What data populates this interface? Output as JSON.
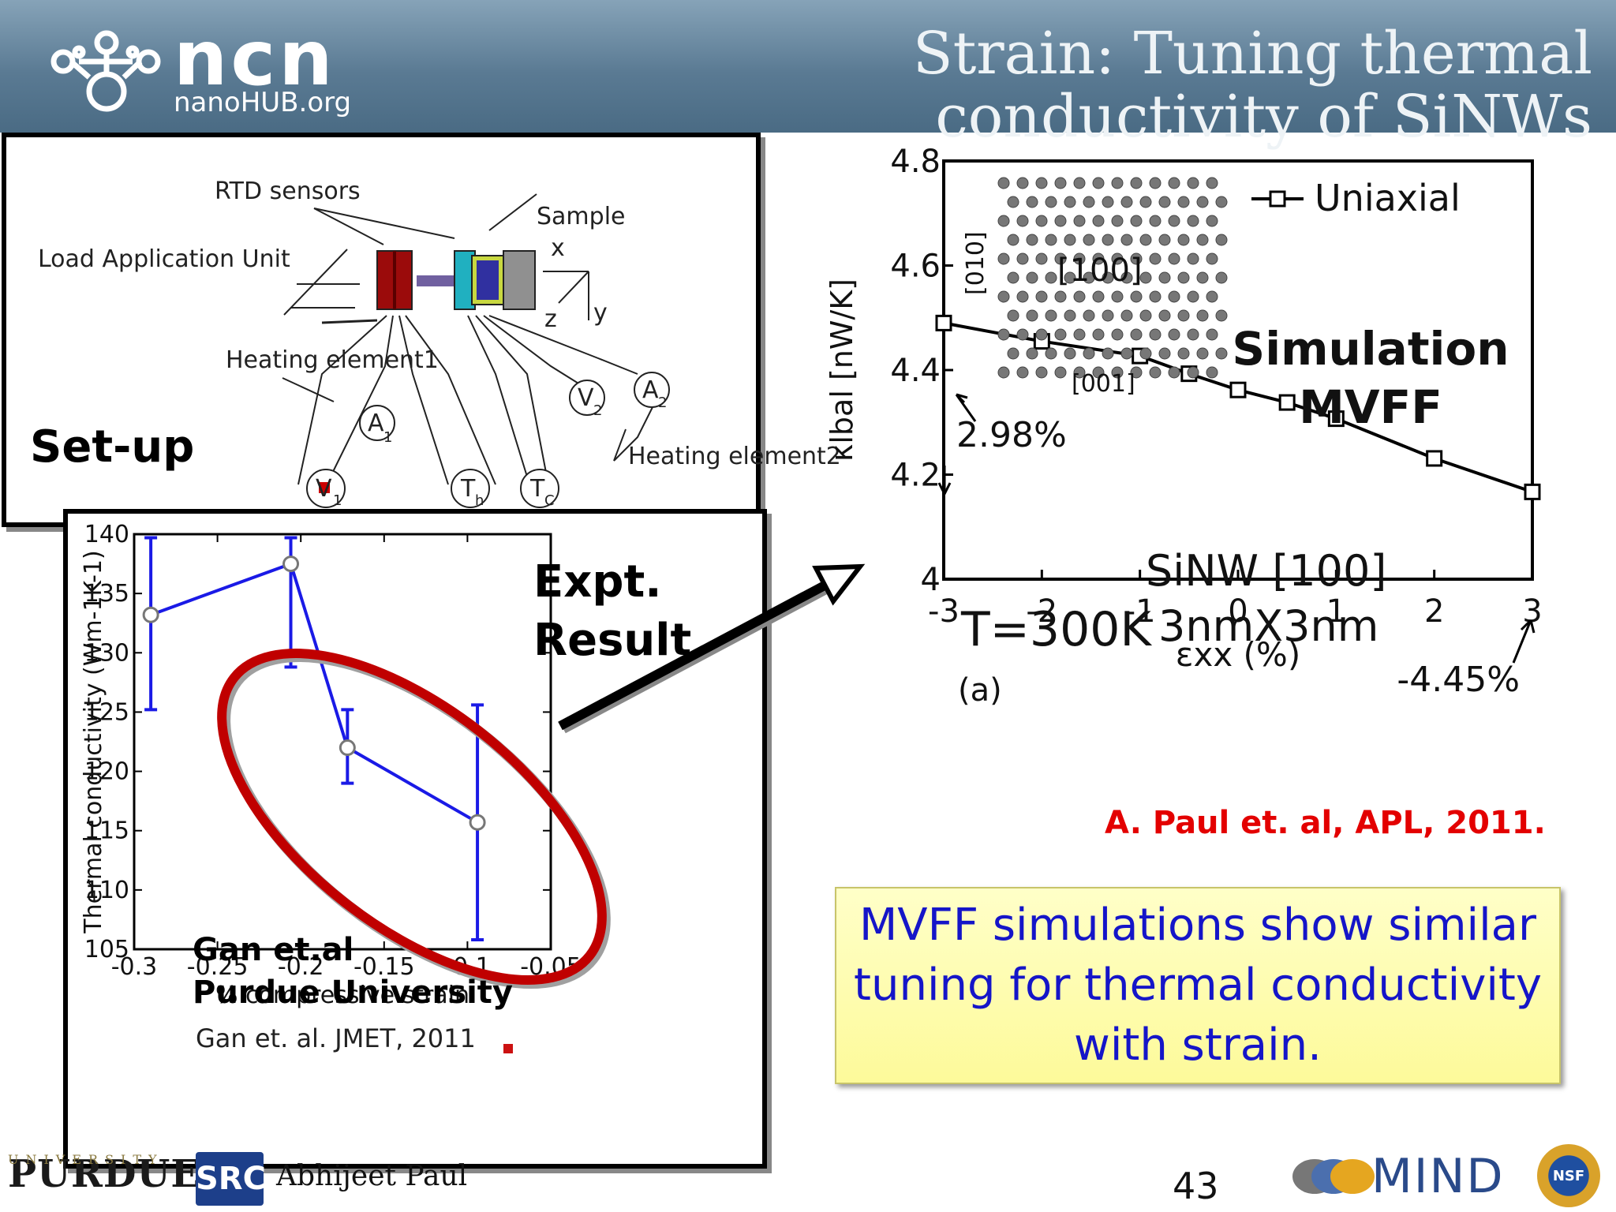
{
  "header": {
    "title": "Strain: Tuning thermal conductivity of SiNWs",
    "logo_text": "ncn",
    "logo_sub": "nanoHUB.org"
  },
  "setup": {
    "label": "Set-up",
    "diagram_labels": {
      "rtd": "RTD sensors",
      "sample": "Sample",
      "load": "Load Application Unit",
      "heating1": "Heating element1",
      "heating2": "Heating element2",
      "x": "x",
      "y": "y",
      "z": "z",
      "a1": "A",
      "a1_sub": "1",
      "a2": "A",
      "a2_sub": "2",
      "v1": "V",
      "v1_sub": "1",
      "v2": "V",
      "v2_sub": "2",
      "th": "T",
      "th_sub": "h",
      "tc": "T",
      "tc_sub": "C"
    }
  },
  "expt": {
    "label_line1": "Expt.",
    "label_line2": "Result",
    "credit_line1": "Gan et.al",
    "credit_line2": "Purdue University",
    "ref": "Gan et. al. JMET, 2011"
  },
  "simulation": {
    "label_line1": "Simulation",
    "label_line2": "MVFF",
    "legend": "Uniaxial",
    "wire": "SiNW [100]",
    "temp": "T=300K",
    "size": "3nmX3nm",
    "panel": "(a)",
    "ann_left": "2.98%",
    "ann_right": "-4.45%",
    "dir_010": "[010]",
    "dir_100": "[100]",
    "dir_001": "[001]"
  },
  "citation": "A. Paul et. al, APL, 2011.",
  "caption": "MVFF simulations show similar tuning for thermal conductivity with strain.",
  "footer": {
    "purdue": "PURDUE",
    "purdue_sub": "UNIVERSITY",
    "src": "SRC",
    "author": "Abhijeet Paul",
    "page": "43",
    "mind": "MIND",
    "nsf": "NSF"
  },
  "colors": {
    "expt_line": "#1a1ae6",
    "ellipse": "#c00000",
    "arrow": "#000000",
    "sim_line": "#000000"
  },
  "chart_data": [
    {
      "type": "line",
      "title": "",
      "xlabel": "% compressive strain",
      "ylabel": "Thermal conductivity (Wm-1K-1)",
      "xlim": [
        -0.3,
        -0.05
      ],
      "ylim": [
        105,
        140
      ],
      "xticks": [
        -0.3,
        -0.25,
        -0.2,
        -0.15,
        -0.1,
        -0.05
      ],
      "xtick_labels": [
        "-0.3",
        "-0.25",
        "-0.2",
        "-0.15",
        "-0.1",
        "-0.05"
      ],
      "yticks": [
        105,
        110,
        115,
        120,
        125,
        130,
        135,
        140
      ],
      "ytick_labels": [
        "105",
        "110",
        "115",
        "120",
        "125",
        "130",
        "135",
        "140"
      ],
      "series": [
        {
          "x": [
            -0.29,
            -0.206,
            -0.172,
            -0.094
          ],
          "y": [
            133.2,
            137.5,
            122.0,
            115.7
          ],
          "err_low": [
            125.2,
            128.8,
            119.0,
            105.8
          ],
          "err_high": [
            139.7,
            139.7,
            125.2,
            125.6
          ]
        }
      ]
    },
    {
      "type": "line",
      "title": "",
      "xlabel": "εxx (%)",
      "ylabel": "κlbal [nW/K]",
      "xlim": [
        -3,
        3
      ],
      "ylim": [
        4,
        4.8
      ],
      "xticks": [
        -3,
        -2,
        -1,
        0,
        1,
        2,
        3
      ],
      "xtick_labels": [
        "-3",
        "-2",
        "-1",
        "0",
        "1",
        "2",
        "3"
      ],
      "yticks": [
        4,
        4.2,
        4.4,
        4.6,
        4.8
      ],
      "ytick_labels": [
        "4",
        "4.2",
        "4.4",
        "4.6",
        "4.8"
      ],
      "legend": "top-right",
      "series": [
        {
          "name": "Uniaxial",
          "x": [
            -3,
            -2,
            -1,
            -0.5,
            0,
            0.5,
            1,
            2,
            3
          ],
          "y": [
            4.49,
            4.455,
            4.427,
            4.393,
            4.362,
            4.338,
            4.307,
            4.231,
            4.167
          ]
        }
      ]
    }
  ]
}
